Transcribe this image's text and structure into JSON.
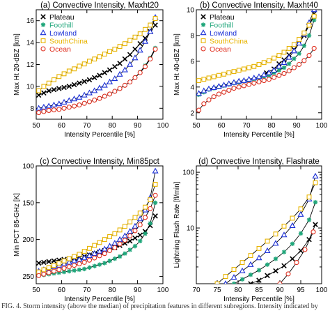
{
  "caption": "FIG. 4. Storm intensity (above the median) of precipitation features in different subregions. Intensity indicated by",
  "chart_data": [
    {
      "type": "line",
      "title": "(a) Convective Intensity, Maxht20",
      "xlabel": "Intensity Percentile [%]",
      "ylabel": "Max Ht 20-dBZ [km]",
      "xlim": [
        50,
        100
      ],
      "ylim": [
        7,
        17
      ],
      "log_y": false,
      "invert_y": false,
      "xticks": [
        50,
        60,
        70,
        80,
        90,
        100
      ],
      "yticks": [
        8,
        10,
        12,
        14,
        16
      ],
      "grid": false,
      "legend": "top-left",
      "series": [
        {
          "name": "Plateau",
          "color": "#000000",
          "marker": "x",
          "x": [
            51,
            53,
            55,
            57,
            59,
            61,
            63,
            65,
            67,
            69,
            71,
            73,
            75,
            77,
            79,
            81,
            83,
            85,
            87,
            89,
            91,
            93,
            95,
            97
          ],
          "y": [
            9.2,
            9.4,
            9.6,
            9.7,
            9.8,
            9.9,
            10.0,
            10.15,
            10.3,
            10.45,
            10.6,
            10.8,
            11.0,
            11.25,
            11.5,
            11.8,
            12.1,
            12.5,
            12.9,
            13.4,
            13.9,
            14.4,
            15.0,
            15.6
          ]
        },
        {
          "name": "Foothill",
          "color": "#1fa67a",
          "marker": "*",
          "x": [
            51,
            53,
            55,
            57,
            59,
            61,
            63,
            65,
            67,
            69,
            71,
            73,
            75,
            77,
            79,
            81,
            83,
            85,
            87,
            89,
            91,
            93,
            95,
            97
          ],
          "y": [
            7.6,
            7.7,
            7.8,
            7.85,
            7.9,
            8.0,
            8.1,
            8.2,
            8.3,
            8.45,
            8.6,
            8.75,
            8.9,
            9.1,
            9.3,
            9.55,
            9.8,
            10.1,
            10.4,
            10.8,
            11.3,
            11.9,
            12.6,
            13.5
          ]
        },
        {
          "name": "Lowland",
          "color": "#1a2fd6",
          "marker": "triangle",
          "x": [
            51,
            53,
            55,
            57,
            59,
            61,
            63,
            65,
            67,
            69,
            71,
            73,
            75,
            77,
            79,
            81,
            83,
            85,
            87,
            89,
            91,
            93,
            95,
            97
          ],
          "y": [
            8.0,
            8.1,
            8.2,
            8.3,
            8.4,
            8.55,
            8.7,
            8.85,
            9.0,
            9.2,
            9.4,
            9.6,
            9.85,
            10.1,
            10.4,
            10.7,
            11.1,
            11.5,
            12.0,
            12.6,
            13.3,
            14.1,
            15.0,
            16.3
          ]
        },
        {
          "name": "SouthChina",
          "color": "#e8b400",
          "marker": "square",
          "x": [
            51,
            53,
            55,
            57,
            59,
            61,
            63,
            65,
            67,
            69,
            71,
            73,
            75,
            77,
            79,
            81,
            83,
            85,
            87,
            89,
            91,
            93,
            95,
            97
          ],
          "y": [
            9.6,
            10.0,
            10.3,
            10.6,
            10.9,
            11.15,
            11.4,
            11.6,
            11.85,
            12.05,
            12.3,
            12.5,
            12.7,
            12.95,
            13.2,
            13.4,
            13.65,
            13.9,
            14.2,
            14.5,
            14.8,
            15.2,
            15.6,
            16.2
          ]
        },
        {
          "name": "Ocean",
          "color": "#e03020",
          "marker": "circle",
          "x": [
            51,
            53,
            55,
            57,
            59,
            61,
            63,
            65,
            67,
            69,
            71,
            73,
            75,
            77,
            79,
            81,
            83,
            85,
            87,
            89,
            91,
            93,
            95,
            97
          ],
          "y": [
            7.6,
            7.7,
            7.8,
            7.85,
            7.9,
            8.0,
            8.1,
            8.2,
            8.3,
            8.45,
            8.6,
            8.75,
            8.9,
            9.1,
            9.3,
            9.55,
            9.8,
            10.1,
            10.4,
            10.8,
            11.25,
            11.8,
            12.5,
            13.4
          ]
        }
      ]
    },
    {
      "type": "line",
      "title": "(b) Convective Intensity, Maxht40",
      "xlabel": "Intensity Percentile [%]",
      "ylabel": "Max Ht 40-dBZ [km]",
      "xlim": [
        50,
        100
      ],
      "ylim": [
        1.5,
        10
      ],
      "log_y": false,
      "invert_y": false,
      "xticks": [
        50,
        60,
        70,
        80,
        90,
        100
      ],
      "yticks": [
        2,
        4,
        6,
        8,
        10
      ],
      "grid": false,
      "legend": "top-left",
      "series": [
        {
          "name": "Plateau",
          "color": "#000000",
          "marker": "x",
          "x": [
            78,
            81,
            83,
            85,
            87,
            89,
            91,
            93,
            95,
            97
          ],
          "y": [
            5.1,
            5.4,
            5.8,
            6.1,
            6.5,
            6.9,
            7.4,
            8.0,
            8.8,
            9.7
          ]
        },
        {
          "name": "Foothill",
          "color": "#1fa67a",
          "marker": "*",
          "x": [
            51,
            53,
            55,
            57,
            59,
            61,
            63,
            65,
            67,
            69,
            71,
            73,
            75,
            77,
            79,
            81,
            83,
            85,
            87,
            89,
            91,
            93,
            95,
            97
          ],
          "y": [
            3.4,
            3.6,
            3.8,
            3.9,
            4.0,
            4.1,
            4.2,
            4.3,
            4.35,
            4.45,
            4.5,
            4.6,
            4.7,
            4.8,
            4.9,
            5.1,
            5.3,
            5.5,
            5.8,
            6.2,
            6.6,
            7.2,
            8.0,
            9.2
          ]
        },
        {
          "name": "Lowland",
          "color": "#1a2fd6",
          "marker": "triangle",
          "x": [
            51,
            53,
            55,
            57,
            59,
            61,
            63,
            65,
            67,
            69,
            71,
            73,
            75,
            77,
            79,
            81,
            83,
            85,
            87,
            89,
            91,
            93,
            95,
            97
          ],
          "y": [
            3.5,
            3.7,
            3.85,
            3.95,
            4.05,
            4.15,
            4.25,
            4.35,
            4.45,
            4.5,
            4.6,
            4.7,
            4.8,
            4.95,
            5.1,
            5.3,
            5.6,
            5.9,
            6.3,
            6.8,
            7.4,
            8.1,
            9.0,
            10.0
          ]
        },
        {
          "name": "SouthChina",
          "color": "#e8b400",
          "marker": "square",
          "x": [
            51,
            53,
            55,
            57,
            59,
            61,
            63,
            65,
            67,
            69,
            71,
            73,
            75,
            77,
            79,
            81,
            83,
            85,
            87,
            89,
            91,
            93,
            95,
            97
          ],
          "y": [
            4.5,
            4.6,
            4.7,
            4.8,
            4.9,
            5.0,
            5.1,
            5.2,
            5.3,
            5.4,
            5.5,
            5.6,
            5.75,
            5.9,
            6.05,
            6.25,
            6.45,
            6.7,
            7.0,
            7.3,
            7.7,
            8.2,
            8.8,
            9.5
          ]
        },
        {
          "name": "Ocean",
          "color": "#e03020",
          "marker": "circle",
          "x": [
            51,
            53,
            55,
            57,
            59,
            61,
            63,
            65,
            67,
            69,
            71,
            73,
            75,
            77,
            79,
            81,
            83,
            85,
            87,
            89,
            91,
            93,
            95,
            97
          ],
          "y": [
            2.2,
            2.7,
            3.0,
            3.25,
            3.45,
            3.6,
            3.75,
            3.9,
            4.0,
            4.1,
            4.2,
            4.3,
            4.4,
            4.5,
            4.6,
            4.75,
            4.9,
            5.05,
            5.25,
            5.5,
            5.75,
            6.05,
            6.45,
            7.0
          ]
        }
      ]
    },
    {
      "type": "line",
      "title": "(c) Convective Intensity, Min85pct",
      "xlabel": "Intensity Percentile [%]",
      "ylabel": "Min PCT 85-GHz [K]",
      "xlim": [
        50,
        100
      ],
      "ylim": [
        100,
        260
      ],
      "log_y": false,
      "invert_y": true,
      "xticks": [
        50,
        60,
        70,
        80,
        90,
        100
      ],
      "yticks": [
        100,
        150,
        200,
        250
      ],
      "grid": false,
      "legend": "none",
      "series": [
        {
          "name": "Plateau",
          "color": "#000000",
          "marker": "x",
          "x": [
            51,
            53,
            55,
            57,
            59,
            61,
            63,
            65,
            67,
            69,
            71,
            73,
            75,
            77,
            79,
            81,
            83,
            85,
            87,
            89,
            91,
            93,
            95,
            97
          ],
          "y": [
            232,
            231,
            230,
            229,
            228,
            227,
            226,
            225,
            224,
            223,
            221,
            219,
            217,
            215,
            213,
            211,
            208,
            205,
            202,
            198,
            194,
            189,
            181,
            168
          ]
        },
        {
          "name": "Foothill",
          "color": "#1fa67a",
          "marker": "*",
          "x": [
            51,
            53,
            55,
            57,
            59,
            61,
            63,
            65,
            67,
            69,
            71,
            73,
            75,
            77,
            79,
            81,
            83,
            85,
            87,
            89,
            91,
            93,
            95,
            97
          ],
          "y": [
            249,
            248,
            247,
            246,
            245,
            244,
            243,
            242,
            241,
            240,
            238,
            236,
            234,
            232,
            229,
            226,
            223,
            219,
            214,
            209,
            202,
            192,
            178,
            150
          ]
        },
        {
          "name": "Lowland",
          "color": "#1a2fd6",
          "marker": "triangle",
          "x": [
            51,
            53,
            55,
            57,
            59,
            61,
            63,
            65,
            67,
            69,
            71,
            73,
            75,
            77,
            79,
            81,
            83,
            85,
            87,
            89,
            91,
            93,
            95,
            97
          ],
          "y": [
            243,
            241,
            239,
            237,
            235,
            233,
            231,
            229,
            227,
            225,
            222,
            219,
            216,
            213,
            209,
            205,
            200,
            195,
            189,
            182,
            172,
            160,
            143,
            107
          ]
        },
        {
          "name": "SouthChina",
          "color": "#e8b400",
          "marker": "square",
          "x": [
            51,
            53,
            55,
            57,
            59,
            61,
            63,
            65,
            67,
            69,
            71,
            73,
            75,
            77,
            79,
            81,
            83,
            85,
            87,
            89,
            91,
            93,
            95,
            97
          ],
          "y": [
            244,
            241,
            238,
            235,
            232,
            229,
            226,
            223,
            220,
            216,
            212,
            208,
            204,
            200,
            196,
            192,
            187,
            182,
            176,
            170,
            164,
            156,
            146,
            125
          ]
        },
        {
          "name": "Ocean",
          "color": "#e03020",
          "marker": "circle",
          "x": [
            51,
            53,
            55,
            57,
            59,
            61,
            63,
            65,
            67,
            69,
            71,
            73,
            75,
            77,
            79,
            81,
            83,
            85,
            87,
            89,
            91,
            93,
            95,
            97
          ],
          "y": [
            249,
            247,
            245,
            243,
            241,
            239,
            237,
            235,
            233,
            231,
            228,
            225,
            222,
            219,
            215,
            211,
            206,
            201,
            195,
            188,
            180,
            170,
            158,
            140
          ]
        }
      ]
    },
    {
      "type": "line",
      "title": "(d) Convective Intensity, Flashrate",
      "xlabel": "Intensity Percentile [%]",
      "ylabel": "Lightning Flash Rate [fl/min]",
      "xlim": [
        70,
        100
      ],
      "ylim": [
        1,
        130
      ],
      "log_y": true,
      "invert_y": false,
      "xticks": [
        70,
        75,
        80,
        85,
        90,
        95,
        100
      ],
      "yticks": [
        10,
        100
      ],
      "grid": false,
      "legend": "none",
      "series": [
        {
          "name": "Plateau",
          "color": "#000000",
          "marker": "x",
          "x": [
            83,
            85,
            87,
            89,
            91,
            93,
            95,
            97,
            98.5
          ],
          "y": [
            1.0,
            1.15,
            1.4,
            1.7,
            2.1,
            2.8,
            3.9,
            6.2,
            11.5
          ]
        },
        {
          "name": "Foothill",
          "color": "#1fa67a",
          "marker": "*",
          "x": [
            79,
            81,
            83,
            85,
            87,
            89,
            91,
            93,
            95,
            97,
            98.5
          ],
          "y": [
            1.0,
            1.2,
            1.45,
            1.75,
            2.2,
            2.8,
            3.7,
            5.2,
            8.0,
            14.0,
            29.0
          ]
        },
        {
          "name": "Lowland",
          "color": "#1a2fd6",
          "marker": "triangle",
          "x": [
            77,
            79,
            81,
            83,
            85,
            87,
            89,
            91,
            93,
            95,
            97,
            98.5
          ],
          "y": [
            1.0,
            1.3,
            1.7,
            2.2,
            2.9,
            3.9,
            5.3,
            7.5,
            11.0,
            17.5,
            33.0,
            85.0
          ]
        },
        {
          "name": "SouthChina",
          "color": "#e8b400",
          "marker": "square",
          "x": [
            75,
            77,
            79,
            81,
            83,
            85,
            87,
            89,
            91,
            93,
            95,
            97,
            98.5
          ],
          "y": [
            1.0,
            1.35,
            1.8,
            2.4,
            3.2,
            4.3,
            5.8,
            7.8,
            10.8,
            15.0,
            22.0,
            36.0,
            65.0
          ]
        },
        {
          "name": "Ocean",
          "color": "#e03020",
          "marker": "circle",
          "x": [
            90,
            92,
            94,
            96,
            98
          ],
          "y": [
            1.0,
            1.5,
            2.4,
            4.1,
            8.5
          ]
        }
      ]
    }
  ]
}
